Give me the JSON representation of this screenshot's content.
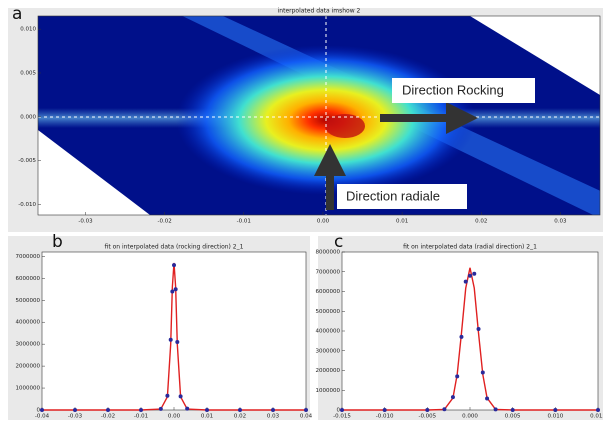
{
  "chart_data": [
    {
      "type": "heatmap",
      "panel_label": "a",
      "title": "interpolated data imshow 2",
      "xlim": [
        -0.036,
        0.035
      ],
      "ylim": [
        -0.0112,
        0.0115
      ],
      "xticks": [
        -0.03,
        -0.02,
        -0.01,
        {
          "value": 0,
          "label": "0.00"
        },
        0.01,
        0.02,
        0.03
      ],
      "yticks": [
        {
          "value": 0.01,
          "label": "0.010"
        },
        0.005,
        {
          "value": 0,
          "label": "0.000"
        },
        -0.005,
        {
          "value": -0.01,
          "label": "-0.010"
        }
      ],
      "annotations": [
        "Direction Rocking",
        "Direction radiale"
      ]
    },
    {
      "type": "line",
      "panel_label": "b",
      "title": "fit on interpolated data (rocking direction) 2_1",
      "xlim": [
        -0.04,
        0.04
      ],
      "ylim": [
        0,
        7200000
      ],
      "xticks": [
        -0.04,
        -0.03,
        -0.02,
        -0.01,
        {
          "value": 0,
          "label": "0.00"
        },
        0.01,
        0.02,
        0.03,
        0.04
      ],
      "yticks": [
        0,
        1000000,
        2000000,
        3000000,
        4000000,
        5000000,
        6000000,
        7000000
      ],
      "x": [
        -0.04,
        -0.03,
        -0.02,
        -0.01,
        -0.004,
        -0.002,
        -0.001,
        -0.0005,
        0,
        0.0005,
        0.001,
        0.002,
        0.004,
        0.01,
        0.02,
        0.03,
        0.04
      ],
      "series": [
        {
          "kind": "line",
          "color": "#e02020",
          "values": [
            0,
            0,
            0,
            0,
            40000,
            600000,
            3000000,
            5600000,
            6700000,
            5600000,
            3000000,
            600000,
            40000,
            0,
            0,
            0,
            0
          ]
        },
        {
          "kind": "scatter",
          "color": "#2a2a9a",
          "values": [
            0,
            0,
            0,
            0,
            50000,
            650000,
            3200000,
            5400000,
            6600000,
            5500000,
            3100000,
            620000,
            60000,
            0,
            0,
            0,
            0
          ]
        }
      ]
    },
    {
      "type": "line",
      "panel_label": "c",
      "title": "fit on interpolated data (radial direction) 2_1",
      "xlim": [
        -0.015,
        0.015
      ],
      "ylim": [
        0,
        8000000
      ],
      "xticks": [
        -0.015,
        {
          "value": -0.01,
          "label": "-0.010"
        },
        -0.005,
        {
          "value": 0,
          "label": "0.000"
        },
        0.005,
        {
          "value": 0.01,
          "label": "0.010"
        },
        0.015
      ],
      "yticks": [
        0,
        1000000,
        2000000,
        3000000,
        4000000,
        5000000,
        6000000,
        7000000,
        8000000
      ],
      "x": [
        -0.015,
        -0.01,
        -0.005,
        -0.003,
        -0.002,
        -0.0015,
        -0.001,
        -0.0005,
        0,
        0.0005,
        0.001,
        0.0015,
        0.002,
        0.003,
        0.005,
        0.01,
        0.015
      ],
      "series": [
        {
          "kind": "line",
          "color": "#e02020",
          "values": [
            0,
            0,
            0,
            28000,
            610000,
            1800000,
            3890000,
            6170000,
            7200000,
            6170000,
            3890000,
            1800000,
            610000,
            28000,
            0,
            0,
            0
          ]
        },
        {
          "kind": "scatter",
          "color": "#2a2a9a",
          "values": [
            0,
            0,
            0,
            40000,
            650000,
            1700000,
            3700000,
            6500000,
            6800000,
            6900000,
            4100000,
            1900000,
            580000,
            30000,
            0,
            0,
            0
          ]
        }
      ]
    }
  ]
}
